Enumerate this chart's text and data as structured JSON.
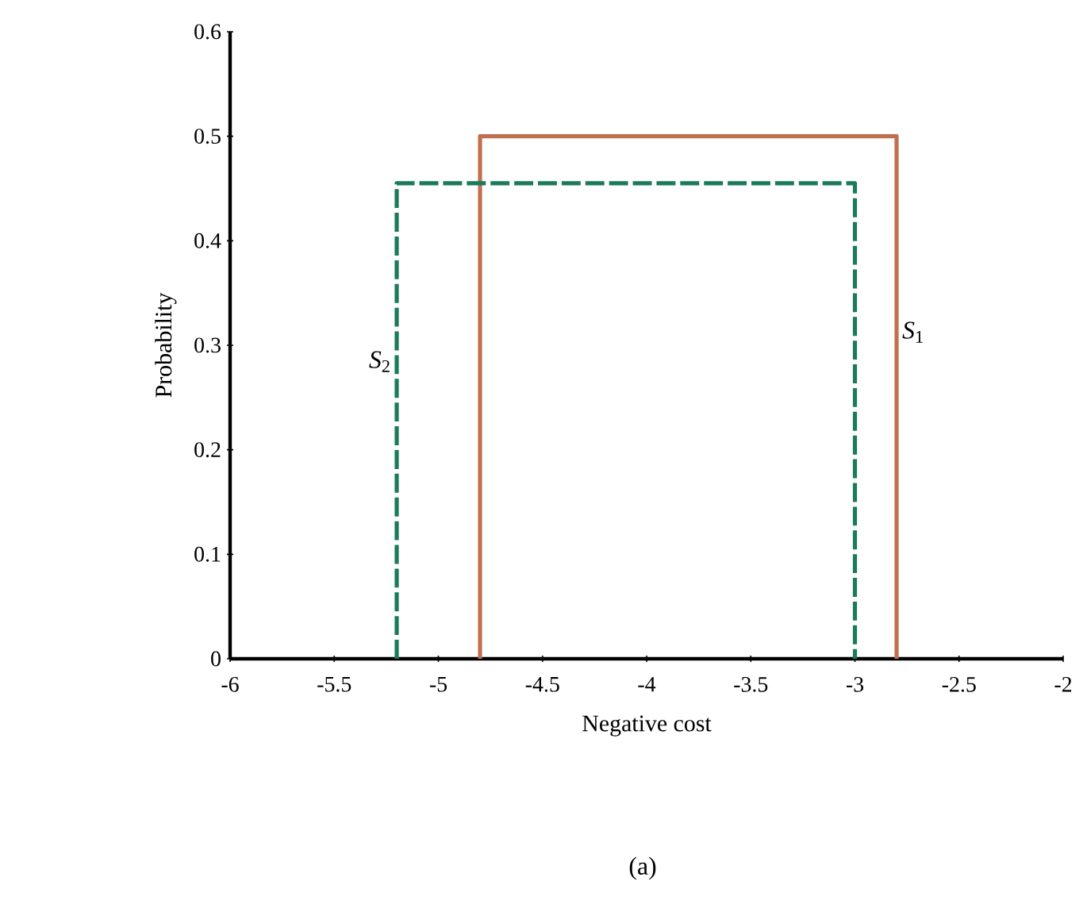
{
  "chart_data": {
    "type": "line",
    "xlabel": "Negative cost",
    "ylabel": "Probability",
    "annotations": [
      "(a)"
    ],
    "xlim": [
      -6,
      -2
    ],
    "ylim": [
      0,
      0.6
    ],
    "xticks": [
      -6,
      -5.5,
      -5,
      -4.5,
      -4,
      -3.5,
      -3,
      -2.5,
      -2
    ],
    "yticks": [
      0,
      0.1,
      0.2,
      0.3,
      0.4,
      0.5,
      0.6
    ],
    "grid": false,
    "marker": "none",
    "series": [
      {
        "name": "*S*$_{1}$",
        "color": "#c0704f",
        "line_style": "solid",
        "x": [
          -4.8,
          -4.8,
          -2.8,
          -2.8
        ],
        "values": [
          0,
          0.5,
          0.5,
          0
        ]
      },
      {
        "name": "*S*$_{2}$",
        "color": "#1a7a5a",
        "line_style": "dashed",
        "x": [
          -5.2,
          -5.2,
          -3.0,
          -3.0
        ],
        "values": [
          0,
          0.455,
          0.455,
          0
        ]
      }
    ]
  }
}
